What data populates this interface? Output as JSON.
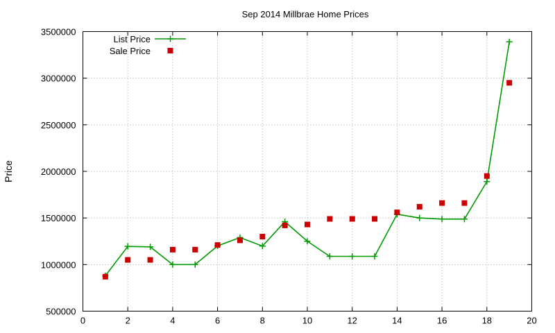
{
  "chart_data": {
    "type": "line",
    "title": "Sep 2014 Millbrae Home Prices",
    "xlabel": "",
    "ylabel": "Price",
    "xlim": [
      0,
      20
    ],
    "ylim": [
      500000,
      3500000
    ],
    "x_ticks": [
      0,
      2,
      4,
      6,
      8,
      10,
      12,
      14,
      16,
      18,
      20
    ],
    "y_ticks": [
      500000,
      1000000,
      1500000,
      2000000,
      2500000,
      3000000,
      3500000
    ],
    "x_tick_labels": [
      "0",
      "2",
      "4",
      "6",
      "8",
      "10",
      "12",
      "14",
      "16",
      "18",
      "20"
    ],
    "y_tick_labels": [
      "500000",
      "1000000",
      "1500000",
      "2000000",
      "2500000",
      "3000000",
      "3500000"
    ],
    "grid": true,
    "legend_position": "top-left",
    "series": [
      {
        "name": "List Price",
        "style": "line+cross",
        "color": "#009900",
        "x": [
          1,
          2,
          3,
          4,
          5,
          6,
          7,
          8,
          9,
          10,
          11,
          12,
          13,
          14,
          15,
          16,
          17,
          18,
          19
        ],
        "y": [
          880000,
          1195000,
          1190000,
          1000000,
          1000000,
          1200000,
          1290000,
          1198000,
          1460000,
          1250000,
          1088000,
          1088000,
          1088000,
          1540000,
          1500000,
          1488000,
          1488000,
          1890000,
          3390000
        ]
      },
      {
        "name": "Sale Price",
        "style": "square",
        "color": "#cc0000",
        "x": [
          1,
          2,
          3,
          4,
          5,
          6,
          7,
          8,
          9,
          10,
          11,
          12,
          13,
          14,
          15,
          16,
          17,
          18,
          19
        ],
        "y": [
          870000,
          1050000,
          1050000,
          1160000,
          1160000,
          1210000,
          1260000,
          1300000,
          1420000,
          1430000,
          1490000,
          1490000,
          1490000,
          1560000,
          1620000,
          1660000,
          1660000,
          1950000,
          2950000
        ]
      }
    ]
  }
}
